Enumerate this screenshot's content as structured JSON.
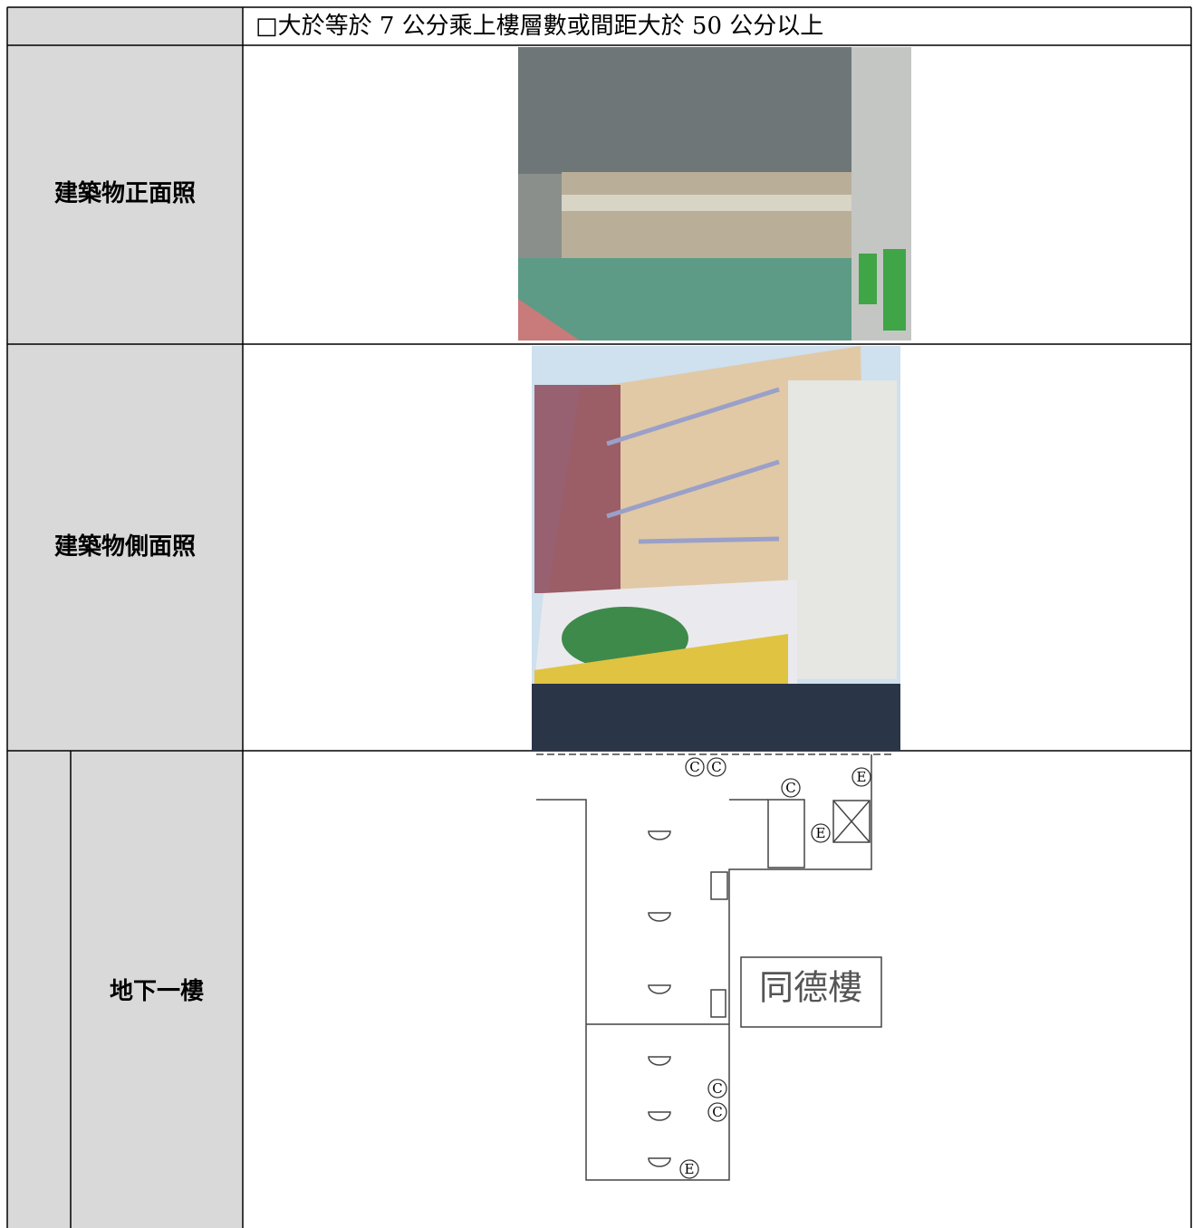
{
  "table": {
    "rows": [
      {
        "label": null,
        "content": "□大於等於 7 公分乘上樓層數或間距大於 50 公分以上"
      },
      {
        "label": "建築物正面照"
      },
      {
        "label": "建築物側面照"
      },
      {
        "label": "地下一樓"
      }
    ]
  },
  "plan": {
    "building": "同德樓",
    "markers": [
      "C",
      "C",
      "C",
      "E",
      "E",
      "C",
      "C",
      "E"
    ]
  }
}
